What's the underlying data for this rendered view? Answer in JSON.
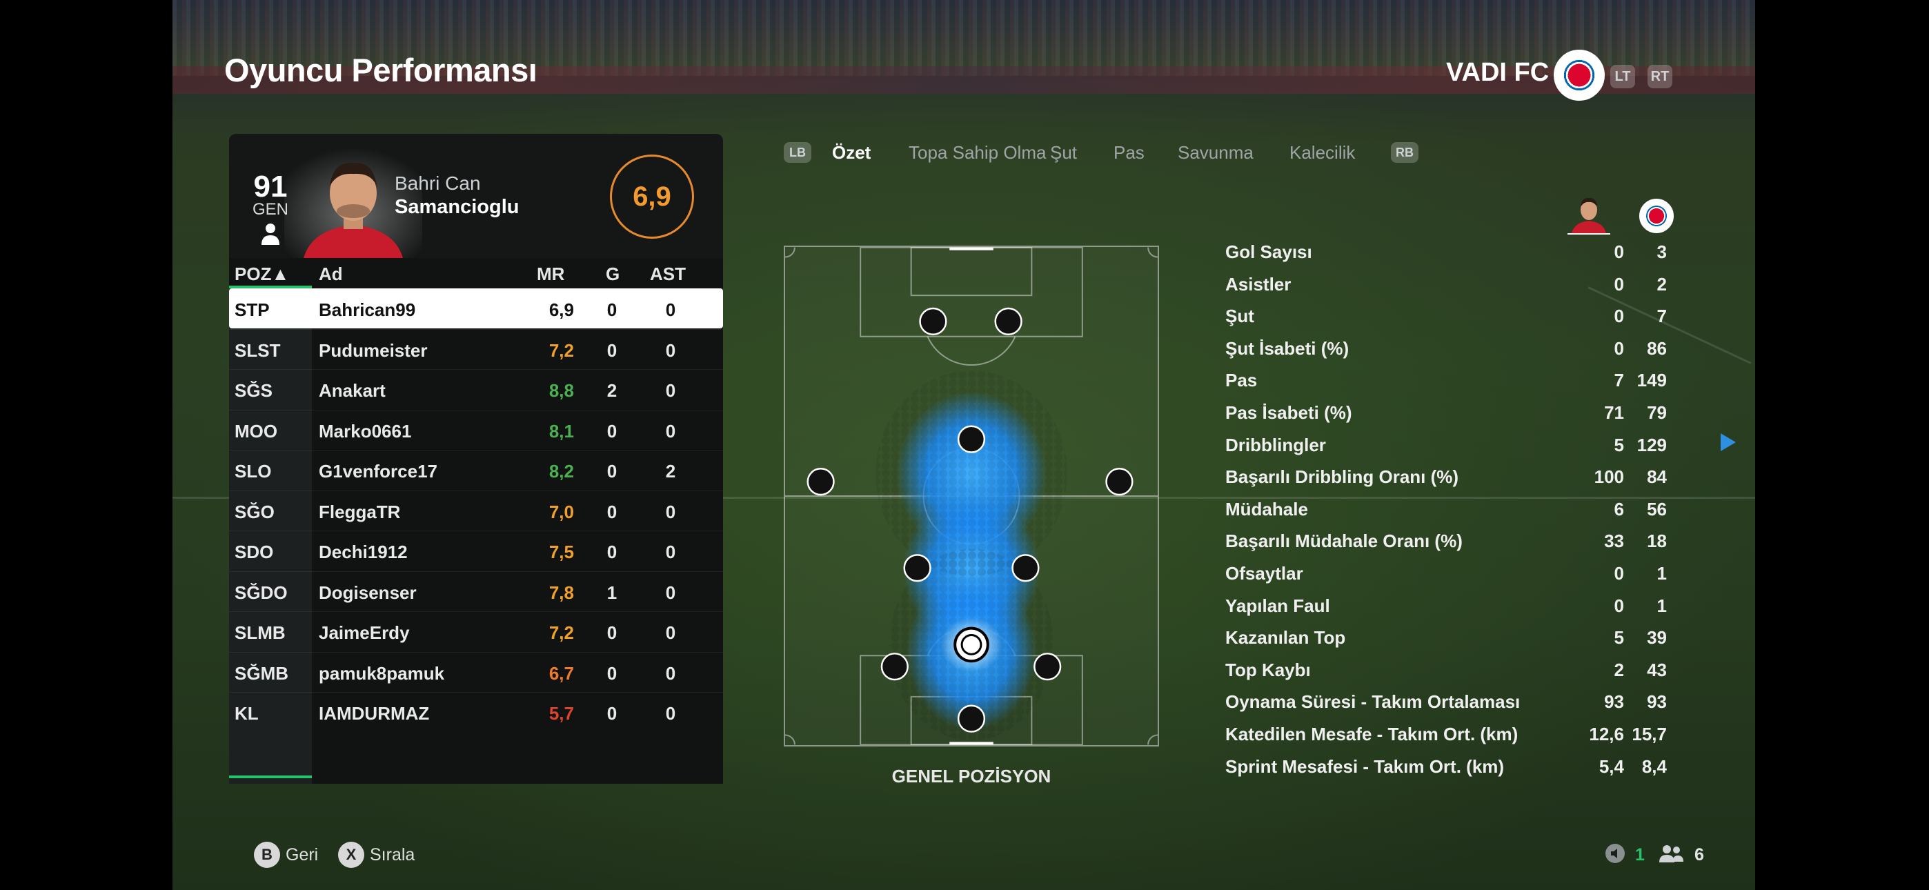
{
  "header": {
    "title": "Oyuncu Performansı",
    "team_name": "VADI FC",
    "lt": "LT",
    "rt": "RT"
  },
  "player": {
    "overall": "91",
    "overall_label": "GEN",
    "first_name": "Bahri Can",
    "last_name": "Samancioglu",
    "rating": "6,9"
  },
  "table": {
    "headers": {
      "poz": "POZ▲",
      "ad": "Ad",
      "mr": "MR",
      "g": "G",
      "ast": "AST"
    },
    "rows": [
      {
        "poz": "STP",
        "ad": "Bahrican99",
        "mr": "6,9",
        "mr_color": "#111111",
        "g": "0",
        "ast": "0"
      },
      {
        "poz": "SLST",
        "ad": "Pudumeister",
        "mr": "7,2",
        "mr_color": "#f1a02a",
        "g": "0",
        "ast": "0"
      },
      {
        "poz": "SĞS",
        "ad": "Anakart",
        "mr": "8,8",
        "mr_color": "#4caf50",
        "g": "2",
        "ast": "0"
      },
      {
        "poz": "MOO",
        "ad": "Marko0661",
        "mr": "8,1",
        "mr_color": "#4caf50",
        "g": "0",
        "ast": "0"
      },
      {
        "poz": "SLO",
        "ad": "G1venforce17",
        "mr": "8,2",
        "mr_color": "#4caf50",
        "g": "0",
        "ast": "2"
      },
      {
        "poz": "SĞO",
        "ad": "FleggaTR",
        "mr": "7,0",
        "mr_color": "#f1a02a",
        "g": "0",
        "ast": "0"
      },
      {
        "poz": "SDO",
        "ad": "Dechi1912",
        "mr": "7,5",
        "mr_color": "#f1a02a",
        "g": "0",
        "ast": "0"
      },
      {
        "poz": "SĞDO",
        "ad": "Dogisenser",
        "mr": "7,8",
        "mr_color": "#f1a02a",
        "g": "1",
        "ast": "0"
      },
      {
        "poz": "SLMB",
        "ad": "JaimeErdy",
        "mr": "7,2",
        "mr_color": "#f1a02a",
        "g": "0",
        "ast": "0"
      },
      {
        "poz": "SĞMB",
        "ad": "pamuk8pamuk",
        "mr": "6,7",
        "mr_color": "#ee7a2a",
        "g": "0",
        "ast": "0"
      },
      {
        "poz": "KL",
        "ad": "IAMDURMAZ",
        "mr": "5,7",
        "mr_color": "#e0442a",
        "g": "0",
        "ast": "0"
      }
    ]
  },
  "tabs": {
    "lb": "LB",
    "rb": "RB",
    "items": [
      "Özet",
      "Topa Sahip Olma",
      "Şut",
      "Pas",
      "Savunma",
      "Kalecilik"
    ],
    "active_index": 0
  },
  "pitch": {
    "caption": "GENEL POZİSYON",
    "highlight_color": "#1e90ff"
  },
  "stats": [
    {
      "label": "Gol Sayısı",
      "player": "0",
      "team": "3"
    },
    {
      "label": "Asistler",
      "player": "0",
      "team": "2"
    },
    {
      "label": "Şut",
      "player": "0",
      "team": "7"
    },
    {
      "label": "Şut İsabeti (%)",
      "player": "0",
      "team": "86"
    },
    {
      "label": "Pas",
      "player": "7",
      "team": "149"
    },
    {
      "label": "Pas İsabeti (%)",
      "player": "71",
      "team": "79"
    },
    {
      "label": "Dribblingler",
      "player": "5",
      "team": "129"
    },
    {
      "label": "Başarılı Dribbling Oranı (%)",
      "player": "100",
      "team": "84"
    },
    {
      "label": "Müdahale",
      "player": "6",
      "team": "56"
    },
    {
      "label": "Başarılı Müdahale Oranı (%)",
      "player": "33",
      "team": "18"
    },
    {
      "label": "Ofsaytlar",
      "player": "0",
      "team": "1"
    },
    {
      "label": "Yapılan Faul",
      "player": "0",
      "team": "1"
    },
    {
      "label": "Kazanılan Top",
      "player": "5",
      "team": "39"
    },
    {
      "label": "Top Kaybı",
      "player": "2",
      "team": "43"
    },
    {
      "label": "Oynama Süresi - Takım Ortalaması",
      "player": "93",
      "team": "93"
    },
    {
      "label": "Katedilen Mesafe - Takım Ort. (km)",
      "player": "12,6",
      "team": "15,7"
    },
    {
      "label": "Sprint Mesafesi - Takım Ort. (km)",
      "player": "5,4",
      "team": "8,4"
    }
  ],
  "footer": {
    "b_key": "B",
    "b_label": "Geri",
    "x_key": "X",
    "x_label": "Sırala",
    "left_count": "1",
    "right_count": "6"
  },
  "colors": {
    "accent_green": "#25c26b",
    "rating_orange": "#f39b2f",
    "blue": "#1e90ff"
  }
}
